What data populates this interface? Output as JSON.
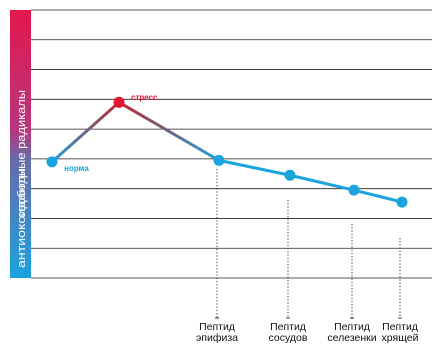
{
  "chart_data": {
    "type": "line",
    "y_axis_labels": {
      "top": "свободные радикалы",
      "bottom": "антиоксиданты"
    },
    "points": [
      {
        "label": "норма",
        "category": "",
        "y": 3.9
      },
      {
        "label": "стресс",
        "category": "",
        "y": 5.9
      },
      {
        "label": "",
        "category": "Пептид эпифиза",
        "y": 3.95
      },
      {
        "label": "",
        "category": "Пептид сосудов",
        "y": 3.45
      },
      {
        "label": "",
        "category": "Пептид селезенки",
        "y": 2.95
      },
      {
        "label": "",
        "category": "Пептид хрящей",
        "y": 2.55
      }
    ],
    "categories": [
      "Пептид эпифиза",
      "Пептид сосудов",
      "Пептид селезенки",
      "Пептид хрящей"
    ],
    "category_lines": [
      [
        "Пептид",
        "эпифиза"
      ],
      [
        "Пептид",
        "сосудов"
      ],
      [
        "Пептид",
        "селезенки"
      ],
      [
        "Пептид",
        "хрящей"
      ]
    ],
    "ylim": [
      0,
      9
    ],
    "grid": true,
    "colors": {
      "normal": "#1aa3dd",
      "stress": "#e3162f",
      "line": "#1aa3dd",
      "axis_top": "#e3174d",
      "axis_bottom": "#1aa3dd",
      "grid": "#222222"
    }
  }
}
